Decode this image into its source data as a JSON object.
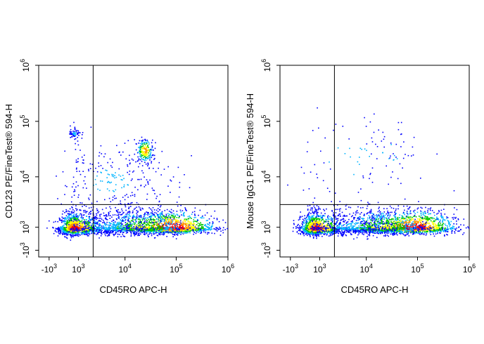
{
  "chart_data": [
    {
      "type": "scatter",
      "subtype": "flow-cytometry-pseudocolor-density",
      "x_scale": "biexponential",
      "y_scale": "biexponential",
      "xlabel": "CD45RO APC-H",
      "ylabel": "CD123 PE/FineTest® 594-H",
      "x_ticks": [
        {
          "value": -1000,
          "exp": "3",
          "neg": true
        },
        {
          "value": 1000,
          "exp": "3",
          "neg": false
        },
        {
          "value": 10000,
          "exp": "4",
          "neg": false
        },
        {
          "value": 100000,
          "exp": "5",
          "neg": false
        },
        {
          "value": 1000000,
          "exp": "6",
          "neg": false
        }
      ],
      "y_ticks": [
        {
          "value": -1000,
          "exp": "3",
          "neg": true
        },
        {
          "value": 1000,
          "exp": "3",
          "neg": false
        },
        {
          "value": 10000,
          "exp": "4",
          "neg": false
        },
        {
          "value": 100000,
          "exp": "5",
          "neg": false
        },
        {
          "value": 1000000,
          "exp": "6",
          "neg": false
        }
      ],
      "quadrant_gate": {
        "x": 2200,
        "y": 3000
      },
      "populations": [
        {
          "x": 600,
          "y": 800,
          "sx": 0.32,
          "sy": 0.16,
          "n": 1300,
          "peak": "red"
        },
        {
          "x": 80000,
          "y": 900,
          "sx": 0.42,
          "sy": 0.16,
          "n": 1200,
          "peak": "red"
        },
        {
          "x": 20000,
          "y": 900,
          "sx": 0.45,
          "sy": 0.18,
          "n": 700,
          "peak": "green"
        },
        {
          "x": 5000,
          "y": 900,
          "sx": 0.5,
          "sy": 0.2,
          "n": 450,
          "peak": "blue"
        },
        {
          "x": 25000,
          "y": 30000,
          "sx": 0.08,
          "sy": 0.1,
          "n": 200,
          "peak": "yellow"
        },
        {
          "x": 600,
          "y": 60000,
          "sx": 0.12,
          "sy": 0.06,
          "n": 60,
          "peak": "blue"
        },
        {
          "x": 5000,
          "y": 8000,
          "sx": 0.65,
          "sy": 0.35,
          "n": 260,
          "peak": "blue"
        }
      ]
    },
    {
      "type": "scatter",
      "subtype": "flow-cytometry-pseudocolor-density",
      "x_scale": "biexponential",
      "y_scale": "biexponential",
      "xlabel": "CD45RO APC-H",
      "ylabel": "Mouse IgG1 PE/FineTest® 594-H",
      "x_ticks": [
        {
          "value": -1000,
          "exp": "3",
          "neg": true
        },
        {
          "value": 1000,
          "exp": "3",
          "neg": false
        },
        {
          "value": 10000,
          "exp": "4",
          "neg": false
        },
        {
          "value": 100000,
          "exp": "5",
          "neg": false
        },
        {
          "value": 1000000,
          "exp": "6",
          "neg": false
        }
      ],
      "y_ticks": [
        {
          "value": -1000,
          "exp": "3",
          "neg": true
        },
        {
          "value": 1000,
          "exp": "3",
          "neg": false
        },
        {
          "value": 10000,
          "exp": "4",
          "neg": false
        },
        {
          "value": 100000,
          "exp": "5",
          "neg": false
        },
        {
          "value": 1000000,
          "exp": "6",
          "neg": false
        }
      ],
      "quadrant_gate": {
        "x": 2200,
        "y": 3000
      },
      "populations": [
        {
          "x": 600,
          "y": 800,
          "sx": 0.32,
          "sy": 0.16,
          "n": 1300,
          "peak": "red"
        },
        {
          "x": 80000,
          "y": 900,
          "sx": 0.42,
          "sy": 0.16,
          "n": 1300,
          "peak": "red"
        },
        {
          "x": 20000,
          "y": 900,
          "sx": 0.45,
          "sy": 0.18,
          "n": 700,
          "peak": "green"
        },
        {
          "x": 5000,
          "y": 900,
          "sx": 0.5,
          "sy": 0.2,
          "n": 450,
          "peak": "blue"
        },
        {
          "x": 30000,
          "y": 25000,
          "sx": 0.25,
          "sy": 0.3,
          "n": 40,
          "peak": "blue"
        },
        {
          "x": 5000,
          "y": 20000,
          "sx": 0.7,
          "sy": 0.5,
          "n": 70,
          "peak": "blue"
        }
      ]
    }
  ],
  "colors": {
    "low": "#0000ff",
    "mid": "#00c800",
    "mid_high": "#ffff00",
    "high": "#ff0000",
    "axis": "#000000",
    "gate": "#000000"
  }
}
